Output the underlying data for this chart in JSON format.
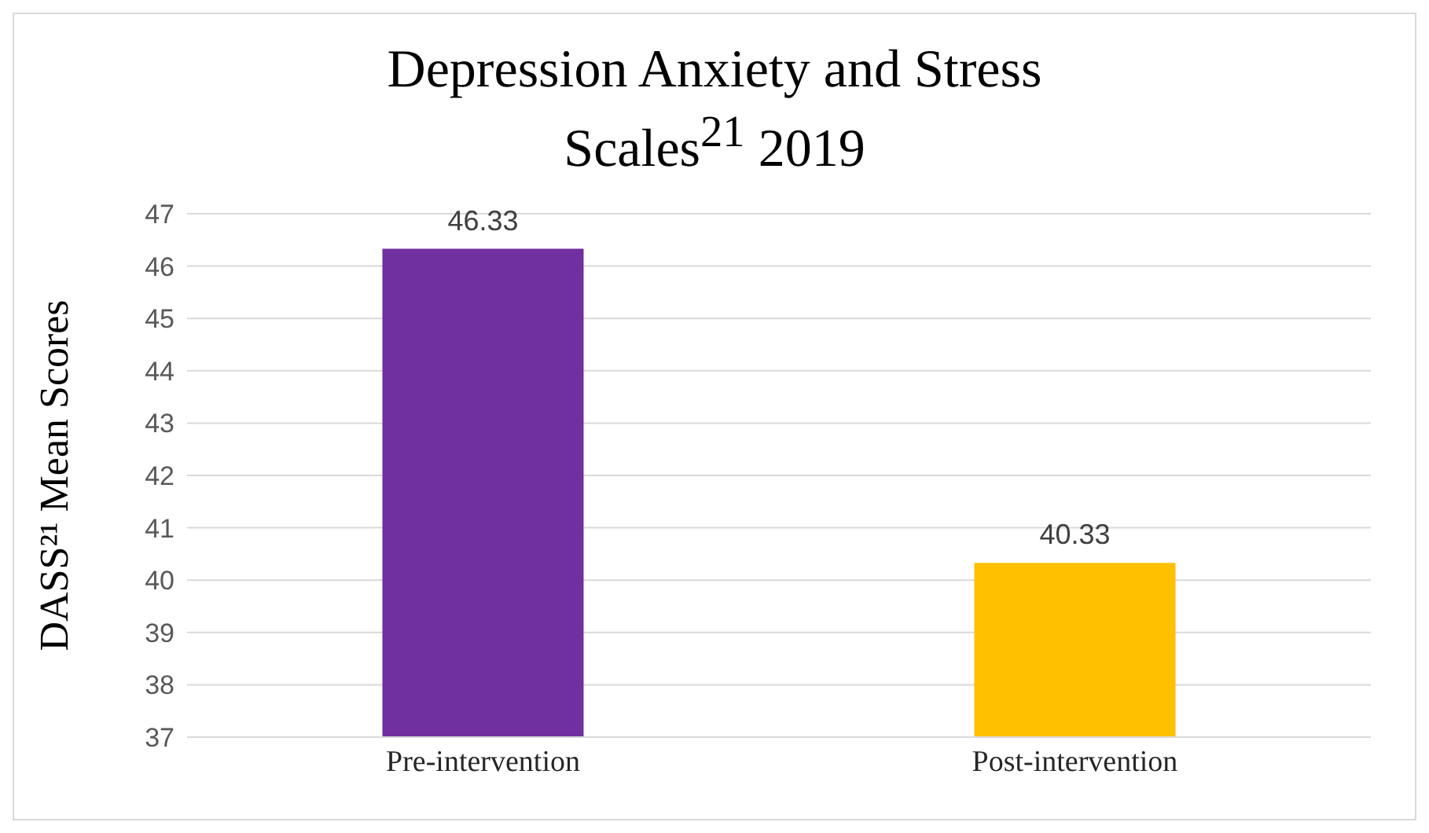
{
  "chart_data": {
    "type": "bar",
    "title": "Depression Anxiety and Stress Scales$^{21}$ 2019",
    "ylabel": "DASS²¹ Mean Scores",
    "categories": [
      "Pre-intervention",
      "Post-intervention"
    ],
    "values": [
      46.33,
      40.33
    ],
    "colors": [
      "#7030a0",
      "#ffc000"
    ],
    "ylim": [
      37,
      47
    ],
    "yticks": [
      37,
      38,
      39,
      40,
      41,
      42,
      43,
      44,
      45,
      46,
      47
    ],
    "grid": "y",
    "data_labels": true,
    "legend": false
  }
}
